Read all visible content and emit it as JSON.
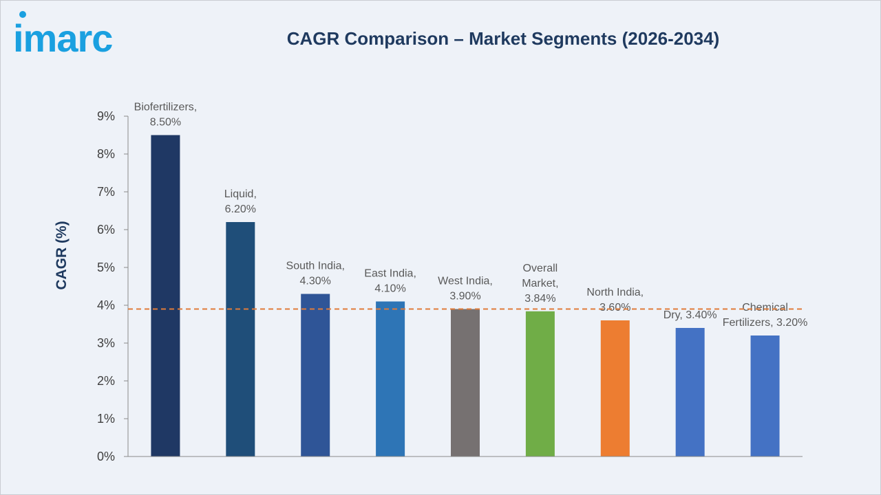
{
  "logo": {
    "text": "imarc",
    "color": "#1aa0e0"
  },
  "chart_data": {
    "type": "bar",
    "title": "CAGR Comparison – Market Segments (2026-2034)",
    "ylabel": "CAGR (%)",
    "xlabel": "",
    "ylim": [
      0,
      9
    ],
    "yticks": [
      "0%",
      "1%",
      "2%",
      "3%",
      "4%",
      "5%",
      "6%",
      "7%",
      "8%",
      "9%"
    ],
    "grid": false,
    "reference_line": {
      "value": 3.9,
      "style": "dashed",
      "color": "#e07b39"
    },
    "bars": [
      {
        "label_lines": [
          "Biofertilizers,",
          "8.50%"
        ],
        "value": 8.5,
        "color": "#1f3864"
      },
      {
        "label_lines": [
          "Liquid,",
          "6.20%"
        ],
        "value": 6.2,
        "color": "#1f4e79"
      },
      {
        "label_lines": [
          "South India,",
          "4.30%"
        ],
        "value": 4.3,
        "color": "#2f5597"
      },
      {
        "label_lines": [
          "East India,",
          "4.10%"
        ],
        "value": 4.1,
        "color": "#2e75b6"
      },
      {
        "label_lines": [
          "West India,",
          "3.90%"
        ],
        "value": 3.9,
        "color": "#767171"
      },
      {
        "label_lines": [
          "Overall",
          "Market,",
          "3.84%"
        ],
        "value": 3.84,
        "color": "#70ad47"
      },
      {
        "label_lines": [
          "North India,",
          "3.60%"
        ],
        "value": 3.6,
        "color": "#ed7d31"
      },
      {
        "label_lines": [
          "Dry, 3.40%"
        ],
        "value": 3.4,
        "color": "#4472c4"
      },
      {
        "label_lines": [
          "Chemical",
          "Fertilizers, 3.20%"
        ],
        "value": 3.2,
        "color": "#4472c4"
      }
    ]
  }
}
